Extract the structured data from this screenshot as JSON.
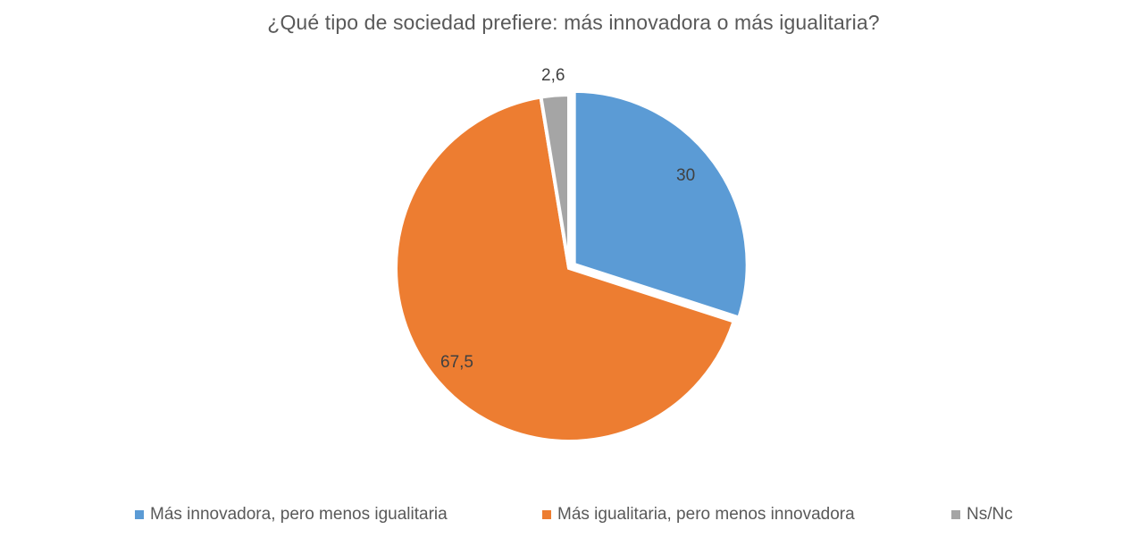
{
  "chart_data": {
    "type": "pie",
    "title": "¿Qué tipo de sociedad prefiere: más innovadora o más igualitaria?",
    "categories": [
      "Más innovadora, pero menos igualitaria",
      "Más igualitaria, pero menos innovadora",
      "Ns/Nc"
    ],
    "values": [
      30,
      67.5,
      2.6
    ],
    "data_labels": [
      "30",
      "67,5",
      "2,6"
    ],
    "colors": [
      "#5B9BD5",
      "#ED7D31",
      "#A5A5A5"
    ],
    "legend_position": "bottom",
    "start_angle_deg": 0,
    "direction": "clockwise",
    "exploded_slice": 0
  },
  "title": "¿Qué tipo de sociedad prefiere: más innovadora o más igualitaria?",
  "labels": {
    "blue": "30",
    "orange": "67,5",
    "gray": "2,6"
  },
  "legend": {
    "items": [
      {
        "label": "Más innovadora, pero menos igualitaria",
        "color": "#5B9BD5"
      },
      {
        "label": "Más igualitaria, pero menos innovadora",
        "color": "#ED7D31"
      },
      {
        "label": "Ns/Nc",
        "color": "#A5A5A5"
      }
    ]
  }
}
